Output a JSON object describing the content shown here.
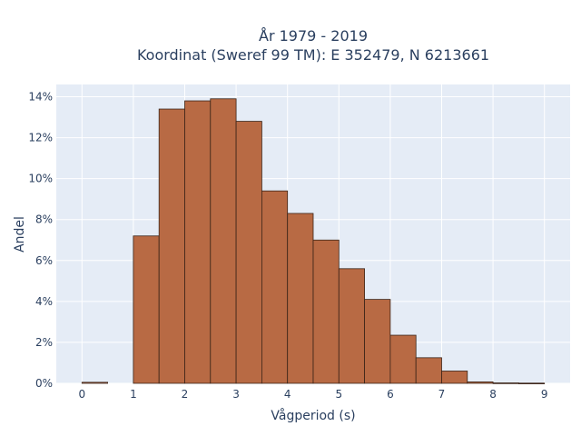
{
  "chart_data": {
    "type": "bar",
    "title_line1": "År 1979 - 2019",
    "title_line2": "Koordinat (Sweref 99 TM): E 352479, N 6213661",
    "xlabel": "Vågperiod (s)",
    "ylabel": "Andel",
    "bin_width": 0.5,
    "bins": [
      {
        "x0": 0.0,
        "x1": 0.5,
        "value": 0.05
      },
      {
        "x0": 1.0,
        "x1": 1.5,
        "value": 7.2
      },
      {
        "x0": 1.5,
        "x1": 2.0,
        "value": 13.4
      },
      {
        "x0": 2.0,
        "x1": 2.5,
        "value": 13.8
      },
      {
        "x0": 2.5,
        "x1": 3.0,
        "value": 13.9
      },
      {
        "x0": 3.0,
        "x1": 3.5,
        "value": 12.8
      },
      {
        "x0": 3.5,
        "x1": 4.0,
        "value": 9.4
      },
      {
        "x0": 4.0,
        "x1": 4.5,
        "value": 8.3
      },
      {
        "x0": 4.5,
        "x1": 5.0,
        "value": 7.0
      },
      {
        "x0": 5.0,
        "x1": 5.5,
        "value": 5.6
      },
      {
        "x0": 5.5,
        "x1": 6.0,
        "value": 4.1
      },
      {
        "x0": 6.0,
        "x1": 6.5,
        "value": 2.35
      },
      {
        "x0": 6.5,
        "x1": 7.0,
        "value": 1.25
      },
      {
        "x0": 7.0,
        "x1": 7.5,
        "value": 0.6
      },
      {
        "x0": 7.5,
        "x1": 8.0,
        "value": 0.07
      },
      {
        "x0": 8.0,
        "x1": 8.5,
        "value": 0.02
      },
      {
        "x0": 8.5,
        "x1": 9.0,
        "value": 0.01
      }
    ],
    "xlim": [
      -0.5,
      9.5
    ],
    "ylim": [
      0,
      14.6
    ],
    "x_ticks": [
      "0",
      "1",
      "2",
      "3",
      "4",
      "5",
      "6",
      "7",
      "8",
      "9"
    ],
    "y_ticks": [
      {
        "value": 0,
        "label": "0%"
      },
      {
        "value": 2,
        "label": "2%"
      },
      {
        "value": 4,
        "label": "4%"
      },
      {
        "value": 6,
        "label": "6%"
      },
      {
        "value": 8,
        "label": "8%"
      },
      {
        "value": 10,
        "label": "10%"
      },
      {
        "value": 12,
        "label": "12%"
      },
      {
        "value": 14,
        "label": "14%"
      }
    ],
    "grid": true,
    "colors": {
      "bar_fill": "#b86a44",
      "bar_stroke": "#3b2418",
      "plot_bg": "#e5ecf6",
      "grid": "#ffffff"
    }
  }
}
